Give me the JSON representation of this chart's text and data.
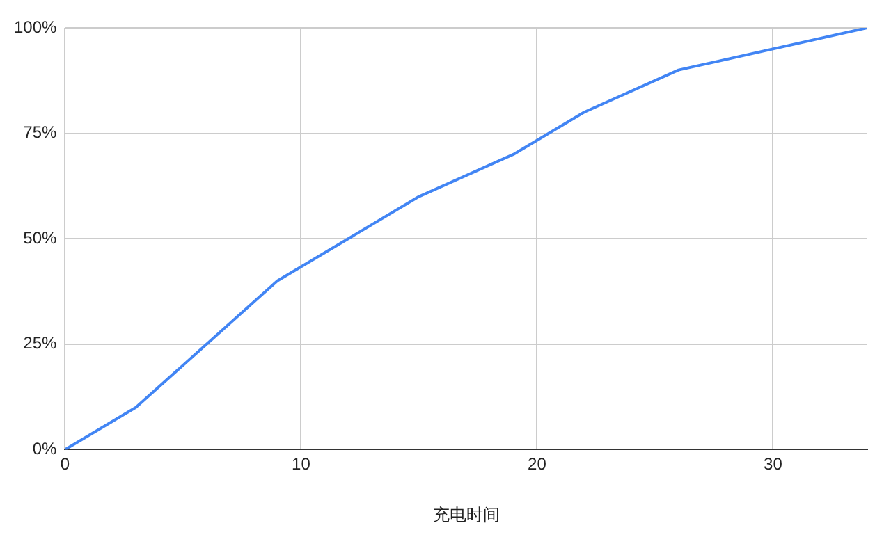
{
  "chart_data": {
    "type": "line",
    "xlabel": "充电时间",
    "x": [
      0,
      3,
      9,
      15,
      19,
      22,
      26,
      34
    ],
    "series": [
      {
        "color": "#4285f4",
        "values": [
          0,
          10,
          40,
          60,
          70,
          80,
          90,
          100
        ]
      }
    ],
    "xlim": [
      0,
      34
    ],
    "xticks": [
      0,
      10,
      20,
      30
    ],
    "ylim": [
      0,
      100
    ],
    "yticks": [
      {
        "value": 0,
        "label": "0%"
      },
      {
        "value": 25,
        "label": "25%"
      },
      {
        "value": 50,
        "label": "50%"
      },
      {
        "value": 75,
        "label": "75%"
      },
      {
        "value": 100,
        "label": "100%"
      }
    ],
    "grid": true,
    "legend": false,
    "marker": "none",
    "line_style": "solid"
  }
}
